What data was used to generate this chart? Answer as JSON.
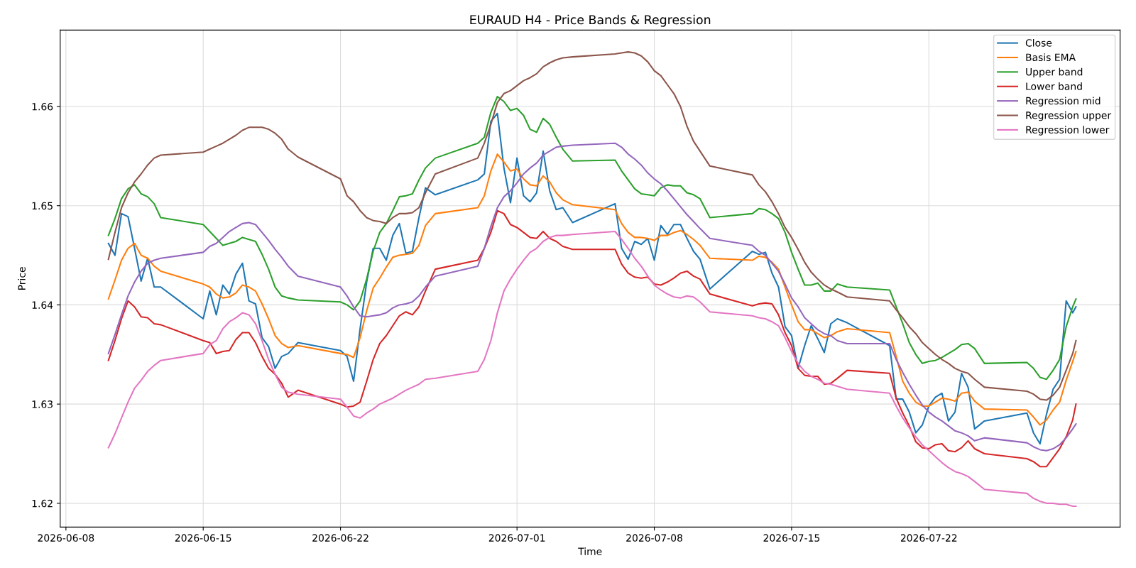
{
  "chart_data": {
    "type": "line",
    "title": "EURAUD H4 - Price Bands & Regression",
    "xlabel": "Time",
    "ylabel": "Price",
    "x": [
      "2026-06-10T04:00",
      "2026-06-10T12:00",
      "2026-06-10T20:00",
      "2026-06-11T04:00",
      "2026-06-11T12:00",
      "2026-06-11T20:00",
      "2026-06-12T04:00",
      "2026-06-12T12:00",
      "2026-06-12T20:00",
      "2026-06-15T00:00",
      "2026-06-15T08:00",
      "2026-06-15T16:00",
      "2026-06-16T00:00",
      "2026-06-16T08:00",
      "2026-06-16T16:00",
      "2026-06-17T00:00",
      "2026-06-17T08:00",
      "2026-06-17T16:00",
      "2026-06-18T00:00",
      "2026-06-18T08:00",
      "2026-06-18T16:00",
      "2026-06-19T00:00",
      "2026-06-19T08:00",
      "2026-06-19T20:00",
      "2026-06-22T00:00",
      "2026-06-22T08:00",
      "2026-06-22T16:00",
      "2026-06-23T00:00",
      "2026-06-23T08:00",
      "2026-06-23T16:00",
      "2026-06-24T00:00",
      "2026-06-24T08:00",
      "2026-06-24T16:00",
      "2026-06-25T00:00",
      "2026-06-25T08:00",
      "2026-06-25T16:00",
      "2026-06-26T00:00",
      "2026-06-26T08:00",
      "2026-06-26T20:00",
      "2026-06-29T00:00",
      "2026-06-29T08:00",
      "2026-06-29T16:00",
      "2026-06-30T00:00",
      "2026-06-30T08:00",
      "2026-06-30T16:00",
      "2026-07-01T00:00",
      "2026-07-01T08:00",
      "2026-07-01T16:00",
      "2026-07-02T00:00",
      "2026-07-02T08:00",
      "2026-07-02T16:00",
      "2026-07-03T00:00",
      "2026-07-03T08:00",
      "2026-07-03T20:00",
      "2026-07-06T00:00",
      "2026-07-06T08:00",
      "2026-07-06T16:00",
      "2026-07-07T00:00",
      "2026-07-07T08:00",
      "2026-07-07T16:00",
      "2026-07-08T00:00",
      "2026-07-08T08:00",
      "2026-07-08T16:00",
      "2026-07-09T00:00",
      "2026-07-09T08:00",
      "2026-07-09T16:00",
      "2026-07-10T00:00",
      "2026-07-10T08:00",
      "2026-07-10T20:00",
      "2026-07-13T00:00",
      "2026-07-13T08:00",
      "2026-07-13T16:00",
      "2026-07-14T00:00",
      "2026-07-14T08:00",
      "2026-07-14T16:00",
      "2026-07-15T00:00",
      "2026-07-15T08:00",
      "2026-07-15T16:00",
      "2026-07-16T00:00",
      "2026-07-16T08:00",
      "2026-07-16T16:00",
      "2026-07-17T00:00",
      "2026-07-17T08:00",
      "2026-07-17T20:00",
      "2026-07-20T00:00",
      "2026-07-20T08:00",
      "2026-07-20T16:00",
      "2026-07-21T00:00",
      "2026-07-21T08:00",
      "2026-07-21T16:00",
      "2026-07-22T00:00",
      "2026-07-22T08:00",
      "2026-07-22T16:00",
      "2026-07-23T00:00",
      "2026-07-23T08:00",
      "2026-07-23T16:00",
      "2026-07-24T00:00",
      "2026-07-24T08:00",
      "2026-07-24T20:00",
      "2026-07-27T00:00",
      "2026-07-27T08:00",
      "2026-07-27T16:00",
      "2026-07-28T00:00",
      "2026-07-28T08:00",
      "2026-07-28T16:00",
      "2026-07-29T00:00",
      "2026-07-29T08:00",
      "2026-07-29T12:00"
    ],
    "series": [
      {
        "name": "Close",
        "color": "#1f77b4",
        "values": [
          1.6462,
          1.645,
          1.6492,
          1.6489,
          1.6457,
          1.6424,
          1.6447,
          1.6418,
          1.6418,
          1.6386,
          1.6414,
          1.639,
          1.642,
          1.6411,
          1.6431,
          1.6442,
          1.6404,
          1.6401,
          1.6367,
          1.6358,
          1.6336,
          1.6348,
          1.6351,
          1.6362,
          1.6354,
          1.6348,
          1.6323,
          1.6376,
          1.6423,
          1.6457,
          1.6457,
          1.6445,
          1.647,
          1.6482,
          1.6452,
          1.6454,
          1.6488,
          1.6518,
          1.6511,
          1.6526,
          1.6532,
          1.6585,
          1.6593,
          1.6538,
          1.6503,
          1.6548,
          1.651,
          1.6504,
          1.6513,
          1.6555,
          1.6515,
          1.6496,
          1.6498,
          1.6483,
          1.6502,
          1.6457,
          1.6446,
          1.6464,
          1.6461,
          1.6467,
          1.6445,
          1.648,
          1.6471,
          1.6481,
          1.6481,
          1.6467,
          1.6454,
          1.6446,
          1.6416,
          1.6454,
          1.6451,
          1.6453,
          1.6432,
          1.6418,
          1.6378,
          1.6369,
          1.6336,
          1.6359,
          1.6379,
          1.6366,
          1.6352,
          1.6381,
          1.6386,
          1.6382,
          1.6359,
          1.6305,
          1.6305,
          1.6292,
          1.6271,
          1.6279,
          1.6298,
          1.6307,
          1.6311,
          1.6283,
          1.6292,
          1.6331,
          1.6317,
          1.6275,
          1.6283,
          1.6291,
          1.6271,
          1.626,
          1.629,
          1.6315,
          1.6325,
          1.6404,
          1.6392,
          1.6398
        ]
      },
      {
        "name": "Basis EMA",
        "color": "#ff7f0e",
        "values": [
          1.6406,
          1.6425,
          1.6445,
          1.6457,
          1.6462,
          1.645,
          1.6447,
          1.6439,
          1.6434,
          1.6421,
          1.6418,
          1.6411,
          1.6407,
          1.6408,
          1.6412,
          1.642,
          1.6418,
          1.6414,
          1.6401,
          1.6386,
          1.6369,
          1.6361,
          1.6357,
          1.6359,
          1.6351,
          1.635,
          1.6347,
          1.6367,
          1.6394,
          1.6417,
          1.6427,
          1.6438,
          1.6448,
          1.645,
          1.6451,
          1.6452,
          1.646,
          1.648,
          1.6492,
          1.6498,
          1.651,
          1.6535,
          1.6552,
          1.6544,
          1.6535,
          1.6537,
          1.6527,
          1.6521,
          1.652,
          1.653,
          1.6524,
          1.6513,
          1.6506,
          1.6501,
          1.6496,
          1.6482,
          1.6473,
          1.6468,
          1.6468,
          1.6467,
          1.6465,
          1.647,
          1.647,
          1.6473,
          1.6475,
          1.6471,
          1.6466,
          1.646,
          1.6447,
          1.6445,
          1.6449,
          1.6448,
          1.6443,
          1.6436,
          1.6418,
          1.64,
          1.6383,
          1.6375,
          1.6375,
          1.6371,
          1.6367,
          1.6369,
          1.6373,
          1.6376,
          1.6372,
          1.6348,
          1.6323,
          1.6311,
          1.6302,
          1.6298,
          1.6298,
          1.6302,
          1.6306,
          1.6305,
          1.6303,
          1.6311,
          1.6312,
          1.6303,
          1.6295,
          1.6294,
          1.6287,
          1.6279,
          1.6284,
          1.6294,
          1.6302,
          1.6324,
          1.6343,
          1.6353
        ]
      },
      {
        "name": "Upper band",
        "color": "#2ca02c",
        "values": [
          1.647,
          1.6487,
          1.6507,
          1.6517,
          1.6521,
          1.6512,
          1.6509,
          1.6502,
          1.6488,
          1.6481,
          1.6474,
          1.6467,
          1.646,
          1.6462,
          1.6464,
          1.6468,
          1.6466,
          1.6464,
          1.6451,
          1.6436,
          1.6418,
          1.6409,
          1.6407,
          1.6405,
          1.6403,
          1.64,
          1.6395,
          1.6404,
          1.6426,
          1.6454,
          1.6473,
          1.6482,
          1.6495,
          1.6509,
          1.651,
          1.6512,
          1.6526,
          1.6538,
          1.6548,
          1.6563,
          1.6569,
          1.6594,
          1.661,
          1.6605,
          1.6596,
          1.6598,
          1.6591,
          1.6577,
          1.6574,
          1.6588,
          1.6582,
          1.6569,
          1.6557,
          1.6545,
          1.6546,
          1.6535,
          1.6526,
          1.6517,
          1.6512,
          1.6511,
          1.651,
          1.6518,
          1.6521,
          1.652,
          1.652,
          1.6513,
          1.6511,
          1.6507,
          1.6488,
          1.6492,
          1.6497,
          1.6496,
          1.6492,
          1.6487,
          1.6473,
          1.6453,
          1.6436,
          1.642,
          1.642,
          1.6422,
          1.6414,
          1.6414,
          1.6421,
          1.6418,
          1.6415,
          1.6398,
          1.6381,
          1.6362,
          1.635,
          1.6341,
          1.6343,
          1.6344,
          1.6347,
          1.6351,
          1.6355,
          1.636,
          1.6361,
          1.6356,
          1.6341,
          1.6342,
          1.6336,
          1.6327,
          1.6325,
          1.6334,
          1.6345,
          1.6378,
          1.6398,
          1.6406
        ]
      },
      {
        "name": "Lower band",
        "color": "#d62728",
        "values": [
          1.6344,
          1.6364,
          1.6386,
          1.6404,
          1.6398,
          1.6388,
          1.6387,
          1.6381,
          1.638,
          1.6364,
          1.6362,
          1.6351,
          1.6353,
          1.6354,
          1.6365,
          1.6372,
          1.6372,
          1.6362,
          1.6348,
          1.6336,
          1.633,
          1.6321,
          1.6307,
          1.6314,
          1.63,
          1.6297,
          1.6298,
          1.6302,
          1.6323,
          1.6345,
          1.6361,
          1.6369,
          1.6379,
          1.6389,
          1.6393,
          1.639,
          1.6398,
          1.6414,
          1.6436,
          1.6445,
          1.6457,
          1.6473,
          1.6495,
          1.6492,
          1.6481,
          1.6478,
          1.6473,
          1.6468,
          1.6467,
          1.6474,
          1.6467,
          1.6464,
          1.6459,
          1.6456,
          1.6456,
          1.6441,
          1.6432,
          1.6428,
          1.6427,
          1.6428,
          1.6421,
          1.642,
          1.6423,
          1.6427,
          1.6432,
          1.6434,
          1.6429,
          1.6426,
          1.6411,
          1.6399,
          1.6401,
          1.6402,
          1.6401,
          1.639,
          1.6372,
          1.6359,
          1.6336,
          1.6329,
          1.6328,
          1.6328,
          1.632,
          1.6321,
          1.6326,
          1.6334,
          1.6331,
          1.6306,
          1.6291,
          1.6278,
          1.6262,
          1.6256,
          1.6255,
          1.6259,
          1.626,
          1.6253,
          1.6252,
          1.6256,
          1.6263,
          1.6255,
          1.625,
          1.6245,
          1.6242,
          1.6237,
          1.6237,
          1.6246,
          1.6255,
          1.6267,
          1.6284,
          1.63
        ]
      },
      {
        "name": "Regression mid",
        "color": "#9467bd",
        "values": [
          1.6351,
          1.637,
          1.639,
          1.6409,
          1.6423,
          1.6434,
          1.6442,
          1.6445,
          1.6447,
          1.6453,
          1.6459,
          1.6462,
          1.6468,
          1.6474,
          1.6478,
          1.6482,
          1.6483,
          1.6481,
          1.6473,
          1.6465,
          1.6456,
          1.6448,
          1.6439,
          1.6429,
          1.6418,
          1.6409,
          1.6398,
          1.6389,
          1.6388,
          1.6389,
          1.639,
          1.6392,
          1.6397,
          1.64,
          1.6401,
          1.6403,
          1.6409,
          1.6418,
          1.6429,
          1.6439,
          1.6457,
          1.6479,
          1.6498,
          1.6509,
          1.6515,
          1.6523,
          1.6532,
          1.6538,
          1.6543,
          1.6551,
          1.6555,
          1.6559,
          1.656,
          1.6561,
          1.6563,
          1.6559,
          1.6552,
          1.6547,
          1.6541,
          1.6533,
          1.6527,
          1.6522,
          1.6515,
          1.6507,
          1.6499,
          1.6491,
          1.6484,
          1.6477,
          1.6467,
          1.646,
          1.6454,
          1.645,
          1.6442,
          1.6434,
          1.6421,
          1.6407,
          1.6398,
          1.6387,
          1.6381,
          1.6375,
          1.6371,
          1.6369,
          1.6364,
          1.6361,
          1.6361,
          1.6345,
          1.6332,
          1.632,
          1.6309,
          1.6299,
          1.6292,
          1.6287,
          1.6283,
          1.6278,
          1.6273,
          1.6271,
          1.6268,
          1.6263,
          1.6266,
          1.6261,
          1.6257,
          1.6254,
          1.6253,
          1.6255,
          1.6259,
          1.6266,
          1.6275,
          1.628
        ]
      },
      {
        "name": "Regression upper",
        "color": "#8c564b",
        "values": [
          1.6446,
          1.6473,
          1.6498,
          1.6513,
          1.6524,
          1.6532,
          1.6541,
          1.6548,
          1.6551,
          1.6554,
          1.6557,
          1.656,
          1.6563,
          1.6567,
          1.6571,
          1.6576,
          1.6579,
          1.6579,
          1.6579,
          1.6577,
          1.6573,
          1.6567,
          1.6557,
          1.6549,
          1.6527,
          1.651,
          1.6504,
          1.6495,
          1.6488,
          1.6485,
          1.6484,
          1.6482,
          1.6488,
          1.6492,
          1.6492,
          1.6493,
          1.6498,
          1.6513,
          1.6532,
          1.6548,
          1.6563,
          1.6582,
          1.6604,
          1.6613,
          1.6616,
          1.6621,
          1.6626,
          1.6629,
          1.6633,
          1.664,
          1.6644,
          1.6647,
          1.6649,
          1.665,
          1.6653,
          1.6654,
          1.6655,
          1.6654,
          1.6651,
          1.6645,
          1.6636,
          1.6631,
          1.6622,
          1.6613,
          1.66,
          1.658,
          1.6565,
          1.6555,
          1.654,
          1.6531,
          1.6521,
          1.6514,
          1.6504,
          1.6492,
          1.6478,
          1.6468,
          1.6456,
          1.6443,
          1.6433,
          1.6426,
          1.642,
          1.6416,
          1.6413,
          1.6408,
          1.6404,
          1.6395,
          1.6387,
          1.6378,
          1.6371,
          1.6362,
          1.6356,
          1.635,
          1.6345,
          1.6341,
          1.6336,
          1.6333,
          1.6331,
          1.6325,
          1.6317,
          1.6313,
          1.631,
          1.6305,
          1.6304,
          1.6309,
          1.6317,
          1.6334,
          1.6351,
          1.6364
        ]
      },
      {
        "name": "Regression lower",
        "color": "#e377c2",
        "values": [
          1.6256,
          1.627,
          1.6286,
          1.6302,
          1.6316,
          1.6324,
          1.6333,
          1.6339,
          1.6344,
          1.6351,
          1.636,
          1.6364,
          1.6376,
          1.6383,
          1.6387,
          1.6392,
          1.639,
          1.6381,
          1.6364,
          1.6345,
          1.633,
          1.6317,
          1.6312,
          1.631,
          1.6305,
          1.6297,
          1.6288,
          1.6286,
          1.6291,
          1.6295,
          1.63,
          1.6303,
          1.6306,
          1.631,
          1.6314,
          1.6317,
          1.632,
          1.6325,
          1.6326,
          1.6333,
          1.6345,
          1.6364,
          1.6392,
          1.6414,
          1.6426,
          1.6436,
          1.6445,
          1.6453,
          1.6457,
          1.6464,
          1.6468,
          1.647,
          1.647,
          1.6471,
          1.6474,
          1.6466,
          1.6457,
          1.6447,
          1.6439,
          1.6429,
          1.642,
          1.6415,
          1.6411,
          1.6408,
          1.6407,
          1.6409,
          1.6408,
          1.6403,
          1.6393,
          1.6389,
          1.6387,
          1.6386,
          1.6383,
          1.6379,
          1.6367,
          1.6353,
          1.6341,
          1.6333,
          1.6328,
          1.6325,
          1.6321,
          1.632,
          1.6318,
          1.6315,
          1.6311,
          1.6298,
          1.6286,
          1.6276,
          1.6267,
          1.6259,
          1.6253,
          1.6247,
          1.6241,
          1.6236,
          1.6232,
          1.623,
          1.6227,
          1.6222,
          1.6214,
          1.621,
          1.6205,
          1.6202,
          1.62,
          1.62,
          1.6199,
          1.6199,
          1.6197,
          1.6197
        ]
      }
    ],
    "xlim": [
      "2026-06-07T17:00",
      "2026-07-31T18:00"
    ],
    "xticks": [
      "2026-06-08",
      "2026-06-15",
      "2026-06-22",
      "2026-07-01",
      "2026-07-08",
      "2026-07-15",
      "2026-07-22"
    ],
    "ylim": [
      1.6176,
      1.6677
    ],
    "yticks": [
      1.62,
      1.63,
      1.64,
      1.65,
      1.66
    ],
    "grid": true,
    "legend": "top right",
    "line_style": "solid",
    "marker": "none"
  }
}
